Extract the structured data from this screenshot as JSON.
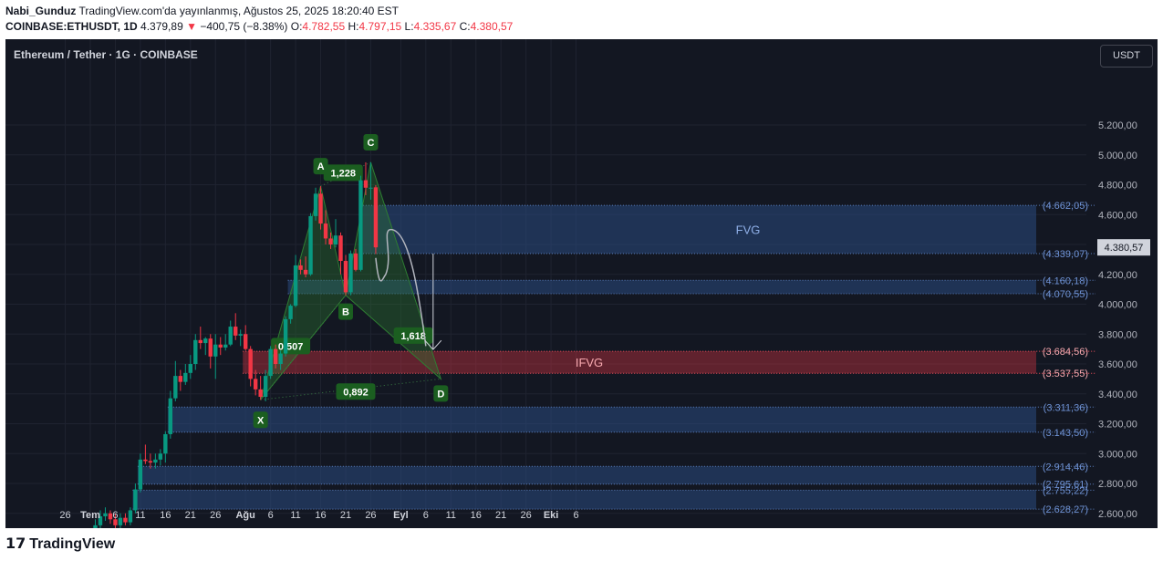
{
  "header": {
    "author": "Nabi_Gunduz",
    "published": "TradingView.com'da yayınlanmış, Ağustos 25, 2025 18:20:40 EST",
    "symbol": "COINBASE:ETHUSDT, 1D",
    "last": "4.379,89",
    "change": "−400,75 (−8.38%)",
    "o_label": "O:",
    "o_value": "4.782,55",
    "h_label": "H:",
    "h_value": "4.797,15",
    "l_label": "L:",
    "l_value": "4.335,67",
    "c_label": "C:",
    "c_value": "4.380,57"
  },
  "chart_title": "Ethereum / Tether · 1G · COINBASE",
  "currency_button": "USDT",
  "footer": {
    "brand": "TradingView"
  },
  "colors": {
    "background": "#131722",
    "bull": "#089981",
    "bear": "#f23645",
    "zone": "#2a4a7f",
    "ifvg": "#f23645",
    "pattern": "#2e7d32",
    "label": "#1b5e20"
  },
  "chart_data": {
    "type": "candlestick",
    "yaxis": {
      "min": 2550,
      "max": 5450,
      "position": "right",
      "ticks": [
        5200,
        5000,
        4800,
        4600,
        4400,
        4200,
        4000,
        3800,
        3600,
        3400,
        3200,
        3000,
        2800,
        2600
      ],
      "tick_labels": [
        "5.200,00",
        "5.000,00",
        "4.800,00",
        "4.600,00",
        "4.400,00",
        "4.200,00",
        "4.000,00",
        "3.800,00",
        "3.600,00",
        "3.400,00",
        "3.200,00",
        "3.000,00",
        "2.800,00",
        "2.600,00"
      ]
    },
    "xaxis": {
      "labels": [
        "26",
        "Tem",
        "6",
        "11",
        "16",
        "21",
        "26",
        "Ağu",
        "6",
        "11",
        "16",
        "21",
        "26",
        "Eyl",
        "6",
        "11",
        "16",
        "21",
        "26",
        "Eki",
        "6"
      ],
      "label_days": [
        -5,
        0,
        5,
        10,
        15,
        20,
        25,
        31,
        36,
        41,
        46,
        51,
        56,
        62,
        67,
        72,
        77,
        82,
        87,
        92,
        97
      ]
    },
    "current_price": 4380.57,
    "current_price_label": "4.380,57",
    "candles": [
      {
        "d": 1,
        "o": 2490,
        "h": 2560,
        "l": 2470,
        "c": 2520
      },
      {
        "d": 2,
        "o": 2520,
        "h": 2620,
        "l": 2500,
        "c": 2580
      },
      {
        "d": 3,
        "o": 2580,
        "h": 2640,
        "l": 2550,
        "c": 2600
      },
      {
        "d": 4,
        "o": 2600,
        "h": 2620,
        "l": 2530,
        "c": 2560
      },
      {
        "d": 5,
        "o": 2560,
        "h": 2600,
        "l": 2500,
        "c": 2520
      },
      {
        "d": 6,
        "o": 2520,
        "h": 2600,
        "l": 2500,
        "c": 2570
      },
      {
        "d": 7,
        "o": 2570,
        "h": 2600,
        "l": 2520,
        "c": 2540
      },
      {
        "d": 8,
        "o": 2540,
        "h": 2640,
        "l": 2520,
        "c": 2620
      },
      {
        "d": 9,
        "o": 2620,
        "h": 2800,
        "l": 2600,
        "c": 2760
      },
      {
        "d": 10,
        "o": 2760,
        "h": 3000,
        "l": 2740,
        "c": 2960
      },
      {
        "d": 11,
        "o": 2960,
        "h": 3060,
        "l": 2930,
        "c": 2950
      },
      {
        "d": 12,
        "o": 2950,
        "h": 3000,
        "l": 2900,
        "c": 2940
      },
      {
        "d": 13,
        "o": 2940,
        "h": 3000,
        "l": 2900,
        "c": 2960
      },
      {
        "d": 14,
        "o": 2960,
        "h": 3030,
        "l": 2920,
        "c": 3000
      },
      {
        "d": 15,
        "o": 3000,
        "h": 3150,
        "l": 2940,
        "c": 3130
      },
      {
        "d": 16,
        "o": 3130,
        "h": 3420,
        "l": 3100,
        "c": 3370
      },
      {
        "d": 17,
        "o": 3370,
        "h": 3620,
        "l": 3350,
        "c": 3520
      },
      {
        "d": 18,
        "o": 3520,
        "h": 3560,
        "l": 3420,
        "c": 3480
      },
      {
        "d": 19,
        "o": 3480,
        "h": 3600,
        "l": 3460,
        "c": 3540
      },
      {
        "d": 20,
        "o": 3540,
        "h": 3660,
        "l": 3500,
        "c": 3600
      },
      {
        "d": 21,
        "o": 3600,
        "h": 3800,
        "l": 3560,
        "c": 3760
      },
      {
        "d": 22,
        "o": 3760,
        "h": 3850,
        "l": 3700,
        "c": 3740
      },
      {
        "d": 23,
        "o": 3740,
        "h": 3780,
        "l": 3660,
        "c": 3770
      },
      {
        "d": 24,
        "o": 3770,
        "h": 3800,
        "l": 3570,
        "c": 3650
      },
      {
        "d": 25,
        "o": 3650,
        "h": 3800,
        "l": 3500,
        "c": 3730
      },
      {
        "d": 26,
        "o": 3730,
        "h": 3780,
        "l": 3660,
        "c": 3710
      },
      {
        "d": 27,
        "o": 3710,
        "h": 3800,
        "l": 3690,
        "c": 3730
      },
      {
        "d": 28,
        "o": 3730,
        "h": 3890,
        "l": 3720,
        "c": 3850
      },
      {
        "d": 29,
        "o": 3850,
        "h": 3940,
        "l": 3760,
        "c": 3790
      },
      {
        "d": 30,
        "o": 3790,
        "h": 3830,
        "l": 3720,
        "c": 3800
      },
      {
        "d": 31,
        "o": 3800,
        "h": 3860,
        "l": 3690,
        "c": 3700
      },
      {
        "d": 32,
        "o": 3700,
        "h": 3720,
        "l": 3450,
        "c": 3500
      },
      {
        "d": 33,
        "o": 3500,
        "h": 3560,
        "l": 3390,
        "c": 3430
      },
      {
        "d": 34,
        "o": 3430,
        "h": 3520,
        "l": 3360,
        "c": 3380
      },
      {
        "d": 35,
        "o": 3380,
        "h": 3560,
        "l": 3350,
        "c": 3520
      },
      {
        "d": 36,
        "o": 3520,
        "h": 3720,
        "l": 3500,
        "c": 3700
      },
      {
        "d": 37,
        "o": 3700,
        "h": 3730,
        "l": 3570,
        "c": 3600
      },
      {
        "d": 38,
        "o": 3600,
        "h": 3690,
        "l": 3560,
        "c": 3670
      },
      {
        "d": 39,
        "o": 3670,
        "h": 3920,
        "l": 3650,
        "c": 3900
      },
      {
        "d": 40,
        "o": 3900,
        "h": 4000,
        "l": 3870,
        "c": 3990
      },
      {
        "d": 41,
        "o": 3990,
        "h": 4330,
        "l": 3980,
        "c": 4260
      },
      {
        "d": 42,
        "o": 4260,
        "h": 4300,
        "l": 4200,
        "c": 4230
      },
      {
        "d": 43,
        "o": 4230,
        "h": 4320,
        "l": 4180,
        "c": 4200
      },
      {
        "d": 44,
        "o": 4200,
        "h": 4610,
        "l": 4190,
        "c": 4590
      },
      {
        "d": 45,
        "o": 4590,
        "h": 4780,
        "l": 4560,
        "c": 4740
      },
      {
        "d": 46,
        "o": 4740,
        "h": 4790,
        "l": 4500,
        "c": 4540
      },
      {
        "d": 47,
        "o": 4540,
        "h": 4630,
        "l": 4400,
        "c": 4440
      },
      {
        "d": 48,
        "o": 4440,
        "h": 4480,
        "l": 4370,
        "c": 4400
      },
      {
        "d": 49,
        "o": 4400,
        "h": 4570,
        "l": 4380,
        "c": 4460
      },
      {
        "d": 50,
        "o": 4460,
        "h": 4480,
        "l": 4200,
        "c": 4290
      },
      {
        "d": 51,
        "o": 4290,
        "h": 4330,
        "l": 4060,
        "c": 4080
      },
      {
        "d": 52,
        "o": 4080,
        "h": 4360,
        "l": 4060,
        "c": 4340
      },
      {
        "d": 53,
        "o": 4340,
        "h": 4370,
        "l": 4220,
        "c": 4230
      },
      {
        "d": 54,
        "o": 4230,
        "h": 4860,
        "l": 4220,
        "c": 4830
      },
      {
        "d": 55,
        "o": 4830,
        "h": 4950,
        "l": 4730,
        "c": 4780
      },
      {
        "d": 56,
        "o": 4780,
        "h": 4950,
        "l": 4700,
        "c": 4780
      },
      {
        "d": 57,
        "o": 4782.55,
        "h": 4797.15,
        "l": 4335.67,
        "c": 4380.57
      }
    ],
    "zones": [
      {
        "name": "FVG",
        "d_start": 55,
        "top": 4662.05,
        "bottom": 4339.07,
        "label_top": "(4.662,05)",
        "label_bottom": "(4.339,07)",
        "text": "FVG"
      },
      {
        "name": "zone-2",
        "d_start": 40,
        "top": 4160.18,
        "bottom": 4070.55,
        "label_top": "(4.160,18)",
        "label_bottom": "(4.070,55)",
        "text": ""
      },
      {
        "name": "IFVG",
        "d_start": 31,
        "top": 3684.56,
        "bottom": 3537.55,
        "label_top": "(3.684,56)",
        "label_bottom": "(3.537,55)",
        "text": "IFVG"
      },
      {
        "name": "zone-4",
        "d_start": 16,
        "top": 3311.36,
        "bottom": 3143.5,
        "label_top": "(3.311,36)",
        "label_bottom": "(3.143,50)",
        "text": ""
      },
      {
        "name": "zone-5",
        "d_start": 10,
        "top": 2914.46,
        "bottom": 2795.61,
        "label_top": "(2.914,46)",
        "label_bottom": "(2.795,61)",
        "text": ""
      },
      {
        "name": "zone-6",
        "d_start": 9,
        "top": 2755.22,
        "bottom": 2628.27,
        "label_top": "(2.755,22)",
        "label_bottom": "(2.628,27)",
        "text": ""
      }
    ],
    "pattern": {
      "points": [
        {
          "label": "X",
          "d": 34,
          "p": 3360
        },
        {
          "label": "A",
          "d": 46,
          "p": 4790
        },
        {
          "label": "B",
          "d": 51,
          "p": 4060
        },
        {
          "label": "C",
          "d": 56,
          "p": 4950
        },
        {
          "label": "D",
          "d": 70,
          "p": 3500
        }
      ],
      "ratios": [
        {
          "text": "0,507",
          "d": 40,
          "p": 3720
        },
        {
          "text": "1,228",
          "d": 50.5,
          "p": 4880
        },
        {
          "text": "1,618",
          "d": 64.5,
          "p": 3790
        },
        {
          "text": "0,892",
          "d": 53,
          "p": 3415
        }
      ]
    },
    "projection": [
      [
        57,
        4310
      ],
      [
        59,
        4200
      ],
      [
        60,
        4500
      ],
      [
        63,
        4300
      ],
      [
        67,
        3720
      ]
    ],
    "target_arrow": {
      "d": 67,
      "from": 4339.07,
      "to": 3684.56
    }
  }
}
